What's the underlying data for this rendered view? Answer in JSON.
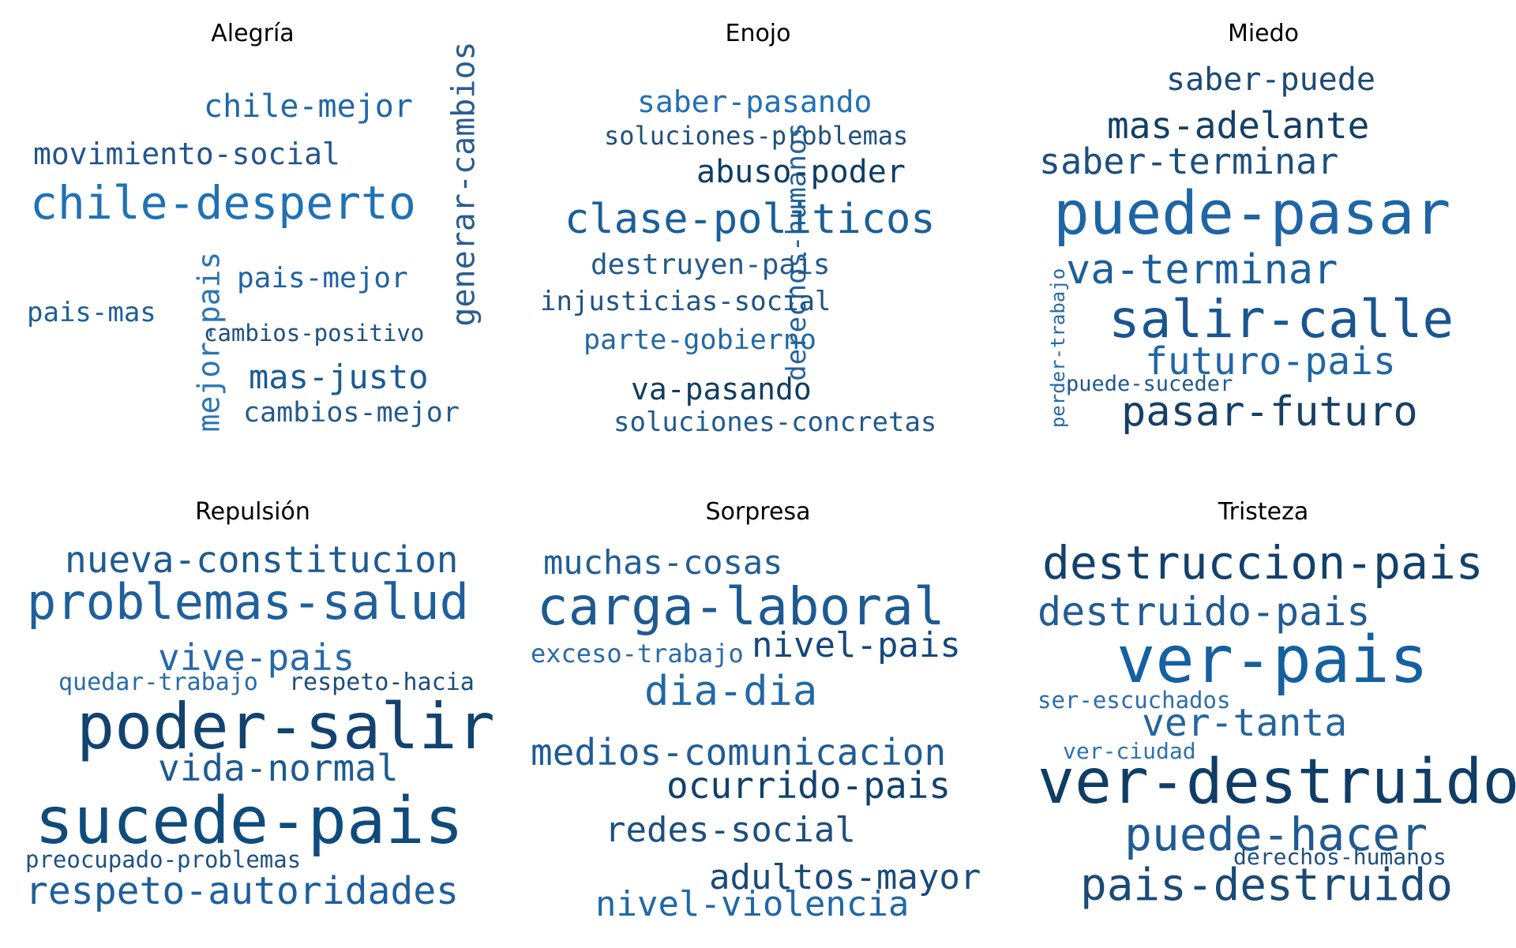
{
  "panels": [
    {
      "title": "Alegría",
      "words": [
        {
          "text": "chile-mejor",
          "color": "#1f68a5",
          "weight": 0.45
        },
        {
          "text": "movimiento-social",
          "color": "#24558c",
          "weight": 0.4
        },
        {
          "text": "chile-desperto",
          "color": "#2171b5",
          "weight": 0.9
        },
        {
          "text": "generar-cambios",
          "color": "#2a5d8f",
          "weight": 0.55,
          "vertical": true
        },
        {
          "text": "pais-mejor",
          "color": "#1f63a3",
          "weight": 0.4
        },
        {
          "text": "mejor-pais",
          "color": "#2b75b5",
          "weight": 0.45,
          "vertical": true
        },
        {
          "text": "pais-mas",
          "color": "#1c5f9a",
          "weight": 0.35
        },
        {
          "text": "cambios-positivo",
          "color": "#1c4f80",
          "weight": 0.3
        },
        {
          "text": "mas-justo",
          "color": "#1a5a96",
          "weight": 0.45
        },
        {
          "text": "cambios-mejor",
          "color": "#245b8c",
          "weight": 0.35
        }
      ]
    },
    {
      "title": "Enojo",
      "words": [
        {
          "text": "saber-pasando",
          "color": "#2171b5",
          "weight": 0.4
        },
        {
          "text": "soluciones-problemas",
          "color": "#1f4f7c",
          "weight": 0.3
        },
        {
          "text": "derechos-humanos",
          "color": "#23619c",
          "weight": 0.35,
          "vertical": true
        },
        {
          "text": "abuso-poder",
          "color": "#0f3d66",
          "weight": 0.45
        },
        {
          "text": "clase-politicos",
          "color": "#1a5f99",
          "weight": 0.8
        },
        {
          "text": "destruyen-pais",
          "color": "#225a8d",
          "weight": 0.4
        },
        {
          "text": "injusticias-social",
          "color": "#1f5284",
          "weight": 0.35
        },
        {
          "text": "parte-gobierno",
          "color": "#2368a6",
          "weight": 0.35
        },
        {
          "text": "va-pasando",
          "color": "#103c63",
          "weight": 0.4
        },
        {
          "text": "soluciones-concretas",
          "color": "#1f5a8c",
          "weight": 0.35
        }
      ]
    },
    {
      "title": "Miedo",
      "words": [
        {
          "text": "saber-puede",
          "color": "#1c4a75",
          "weight": 0.45
        },
        {
          "text": "mas-adelante",
          "color": "#133f67",
          "weight": 0.55
        },
        {
          "text": "saber-terminar",
          "color": "#1d4f7e",
          "weight": 0.5
        },
        {
          "text": "puede-pasar",
          "color": "#1f65a6",
          "weight": 1.0
        },
        {
          "text": "perder-trabajo",
          "color": "#2868a8",
          "weight": 0.25,
          "vertical": true
        },
        {
          "text": "va-terminar",
          "color": "#1c5e9a",
          "weight": 0.6
        },
        {
          "text": "salir-calle",
          "color": "#1a5590",
          "weight": 0.85
        },
        {
          "text": "futuro-pais",
          "color": "#2166a5",
          "weight": 0.55
        },
        {
          "text": "puede-suceder",
          "color": "#1c5890",
          "weight": 0.28
        },
        {
          "text": "pasar-futuro",
          "color": "#173f66",
          "weight": 0.65
        }
      ]
    },
    {
      "title": "Repulsión",
      "words": [
        {
          "text": "nueva-constitucion",
          "color": "#1f5a91",
          "weight": 0.5
        },
        {
          "text": "problemas-salud",
          "color": "#1f5f9c",
          "weight": 0.75
        },
        {
          "text": "vive-pais",
          "color": "#2868ab",
          "weight": 0.55
        },
        {
          "text": "quedar-trabajo",
          "color": "#2b6ba8",
          "weight": 0.28
        },
        {
          "text": "respeto-hacia",
          "color": "#1c4d7d",
          "weight": 0.28
        },
        {
          "text": "poder-salir",
          "color": "#12426f",
          "weight": 0.95
        },
        {
          "text": "vida-normal",
          "color": "#1e5a90",
          "weight": 0.55
        },
        {
          "text": "sucede-pais",
          "color": "#0f4b7d",
          "weight": 1.0
        },
        {
          "text": "preocupado-problemas",
          "color": "#1e5184",
          "weight": 0.28
        },
        {
          "text": "respeto-autoridades",
          "color": "#1f5f9c",
          "weight": 0.55
        }
      ]
    },
    {
      "title": "Sorpresa",
      "words": [
        {
          "text": "muchas-cosas",
          "color": "#225e95",
          "weight": 0.45
        },
        {
          "text": "carga-laboral",
          "color": "#1e5a92",
          "weight": 0.75
        },
        {
          "text": "exceso-trabajo",
          "color": "#2a6aa8",
          "weight": 0.3
        },
        {
          "text": "nivel-pais",
          "color": "#17477a",
          "weight": 0.45
        },
        {
          "text": "dia-dia",
          "color": "#2368a6",
          "weight": 0.55
        },
        {
          "text": "medios-comunicacion",
          "color": "#1f5c96",
          "weight": 0.48
        },
        {
          "text": "ocurrido-pais",
          "color": "#11406e",
          "weight": 0.48
        },
        {
          "text": "redes-social",
          "color": "#1d4f80",
          "weight": 0.45
        },
        {
          "text": "adultos-mayor",
          "color": "#1a4a7a",
          "weight": 0.45
        },
        {
          "text": "nivel-violencia",
          "color": "#2068a8",
          "weight": 0.45
        }
      ]
    },
    {
      "title": "Tristeza",
      "words": [
        {
          "text": "destruccion-pais",
          "color": "#13416d",
          "weight": 0.6
        },
        {
          "text": "destruido-pais",
          "color": "#225c93",
          "weight": 0.55
        },
        {
          "text": "ver-pais",
          "color": "#1560a0",
          "weight": 1.0
        },
        {
          "text": "ser-escuchados",
          "color": "#2c6dac",
          "weight": 0.28
        },
        {
          "text": "ver-tanta",
          "color": "#25659f",
          "weight": 0.5
        },
        {
          "text": "ver-ciudad",
          "color": "#2d71b1",
          "weight": 0.26
        },
        {
          "text": "ver-destruido",
          "color": "#0f3d66",
          "weight": 0.95
        },
        {
          "text": "puede-hacer",
          "color": "#1f5a92",
          "weight": 0.65
        },
        {
          "text": "derechos-humanos",
          "color": "#1e4f80",
          "weight": 0.28
        },
        {
          "text": "pais-destruido",
          "color": "#1a4a78",
          "weight": 0.6
        }
      ]
    }
  ]
}
